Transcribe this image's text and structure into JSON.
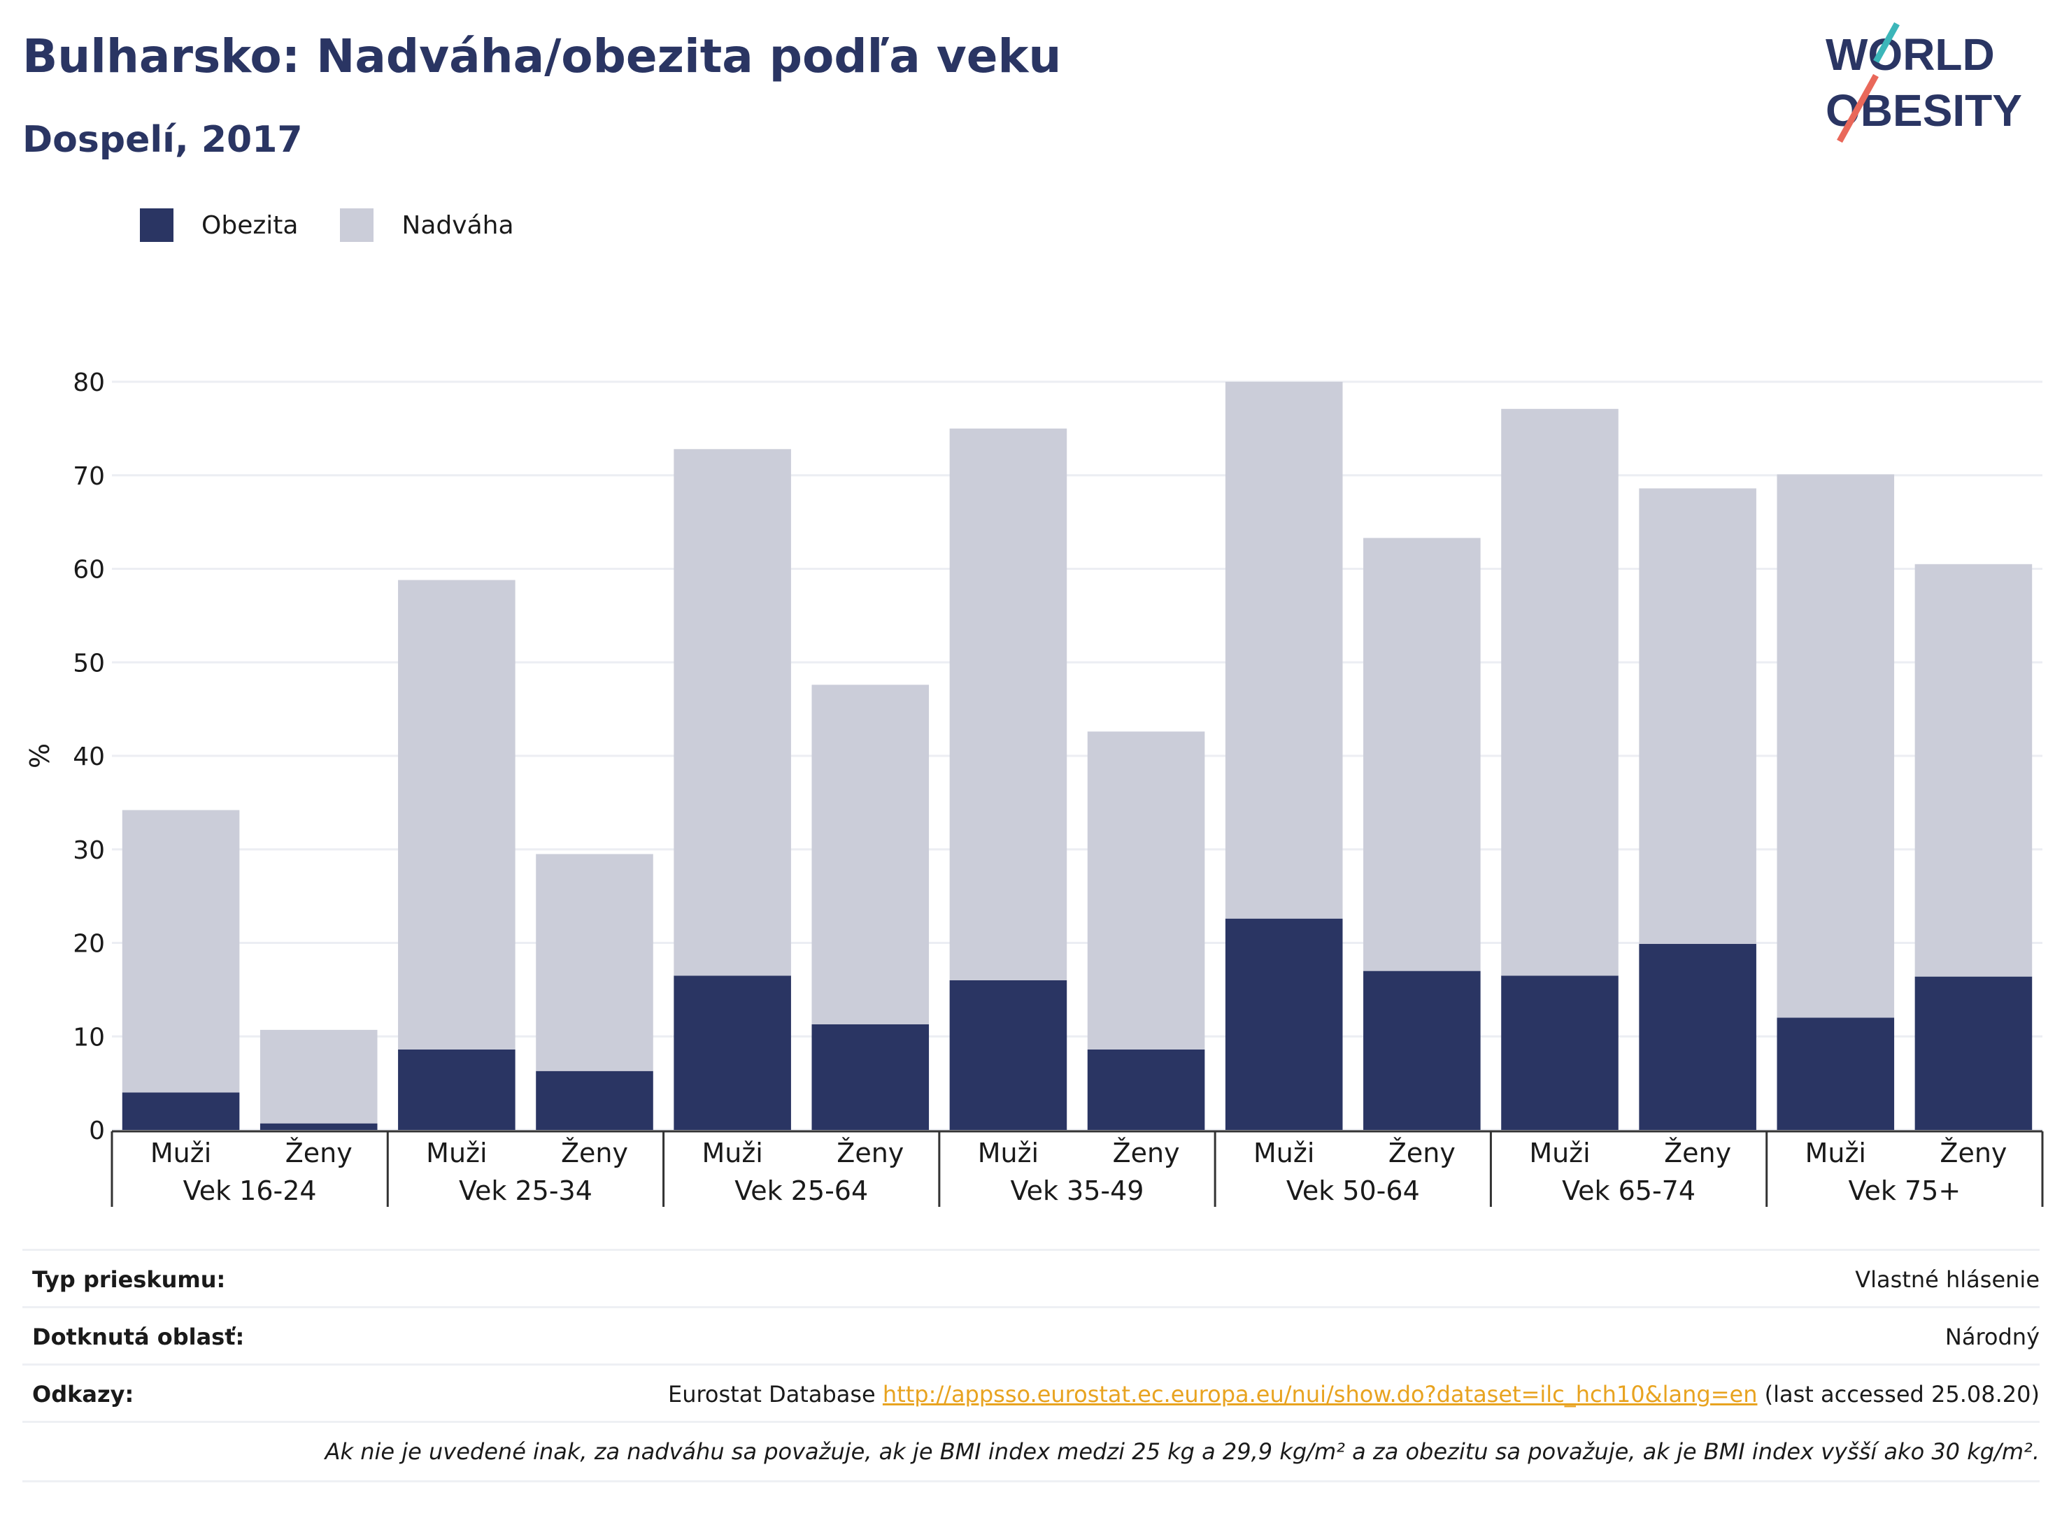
{
  "header": {
    "title": "Bulharsko: Nadváha/obezita podľa veku",
    "subtitle": "Dospelí, 2017"
  },
  "logo": {
    "line1": "WORLD",
    "line2": "OBESITY"
  },
  "legend": [
    {
      "label": "Obezita",
      "color": "#2a3563"
    },
    {
      "label": "Nadváha",
      "color": "#cbcdd9"
    }
  ],
  "chart_data": {
    "type": "bar",
    "stacked": true,
    "ylabel": "%",
    "ylim": [
      0,
      80
    ],
    "yticks": [
      0,
      10,
      20,
      30,
      40,
      50,
      60,
      70,
      80
    ],
    "groups": [
      "Vek 16-24",
      "Vek 25-34",
      "Vek 25-64",
      "Vek 35-49",
      "Vek 50-64",
      "Vek 65-74",
      "Vek 75+"
    ],
    "sexes": [
      "Muži",
      "Ženy"
    ],
    "categories": [
      "Vek 16-24 Muži",
      "Vek 16-24 Ženy",
      "Vek 25-34 Muži",
      "Vek 25-34 Ženy",
      "Vek 25-64 Muži",
      "Vek 25-64 Ženy",
      "Vek 35-49 Muži",
      "Vek 35-49 Ženy",
      "Vek 50-64 Muži",
      "Vek 50-64 Ženy",
      "Vek 65-74 Muži",
      "Vek 65-74 Ženy",
      "Vek 75+ Muži",
      "Vek 75+ Ženy"
    ],
    "series": [
      {
        "name": "Obezita",
        "color": "#2a3563",
        "values": [
          4.0,
          0.7,
          8.6,
          6.3,
          16.5,
          11.3,
          16.0,
          8.6,
          22.6,
          17.0,
          16.5,
          19.9,
          12.0,
          16.4
        ]
      },
      {
        "name": "Nadváha",
        "color": "#cbcdd9",
        "values": [
          30.2,
          10.0,
          50.2,
          23.2,
          56.3,
          36.3,
          59.0,
          34.0,
          57.4,
          46.3,
          60.6,
          48.7,
          58.1,
          44.1
        ]
      }
    ],
    "grid": true,
    "legend_position": "top-left"
  },
  "info": {
    "survey_label": "Typ prieskumu:",
    "survey_value": "Vlastné hlásenie",
    "area_label": "Dotknutá oblasť:",
    "area_value": "Národný",
    "refs_label": "Odkazy:",
    "refs_prefix": "Eurostat Database",
    "refs_link": "http://appsso.eurostat.ec.europa.eu/nui/show.do?dataset=ilc_hch10&lang=en",
    "refs_suffix": "(last accessed 25.08.20)",
    "note": "Ak nie je uvedené inak, za nadváhu sa považuje, ak je BMI index medzi 25 kg a 29,9 kg/m² a za obezitu sa považuje, ak je BMI index vyšší ako 30 kg/m²."
  }
}
